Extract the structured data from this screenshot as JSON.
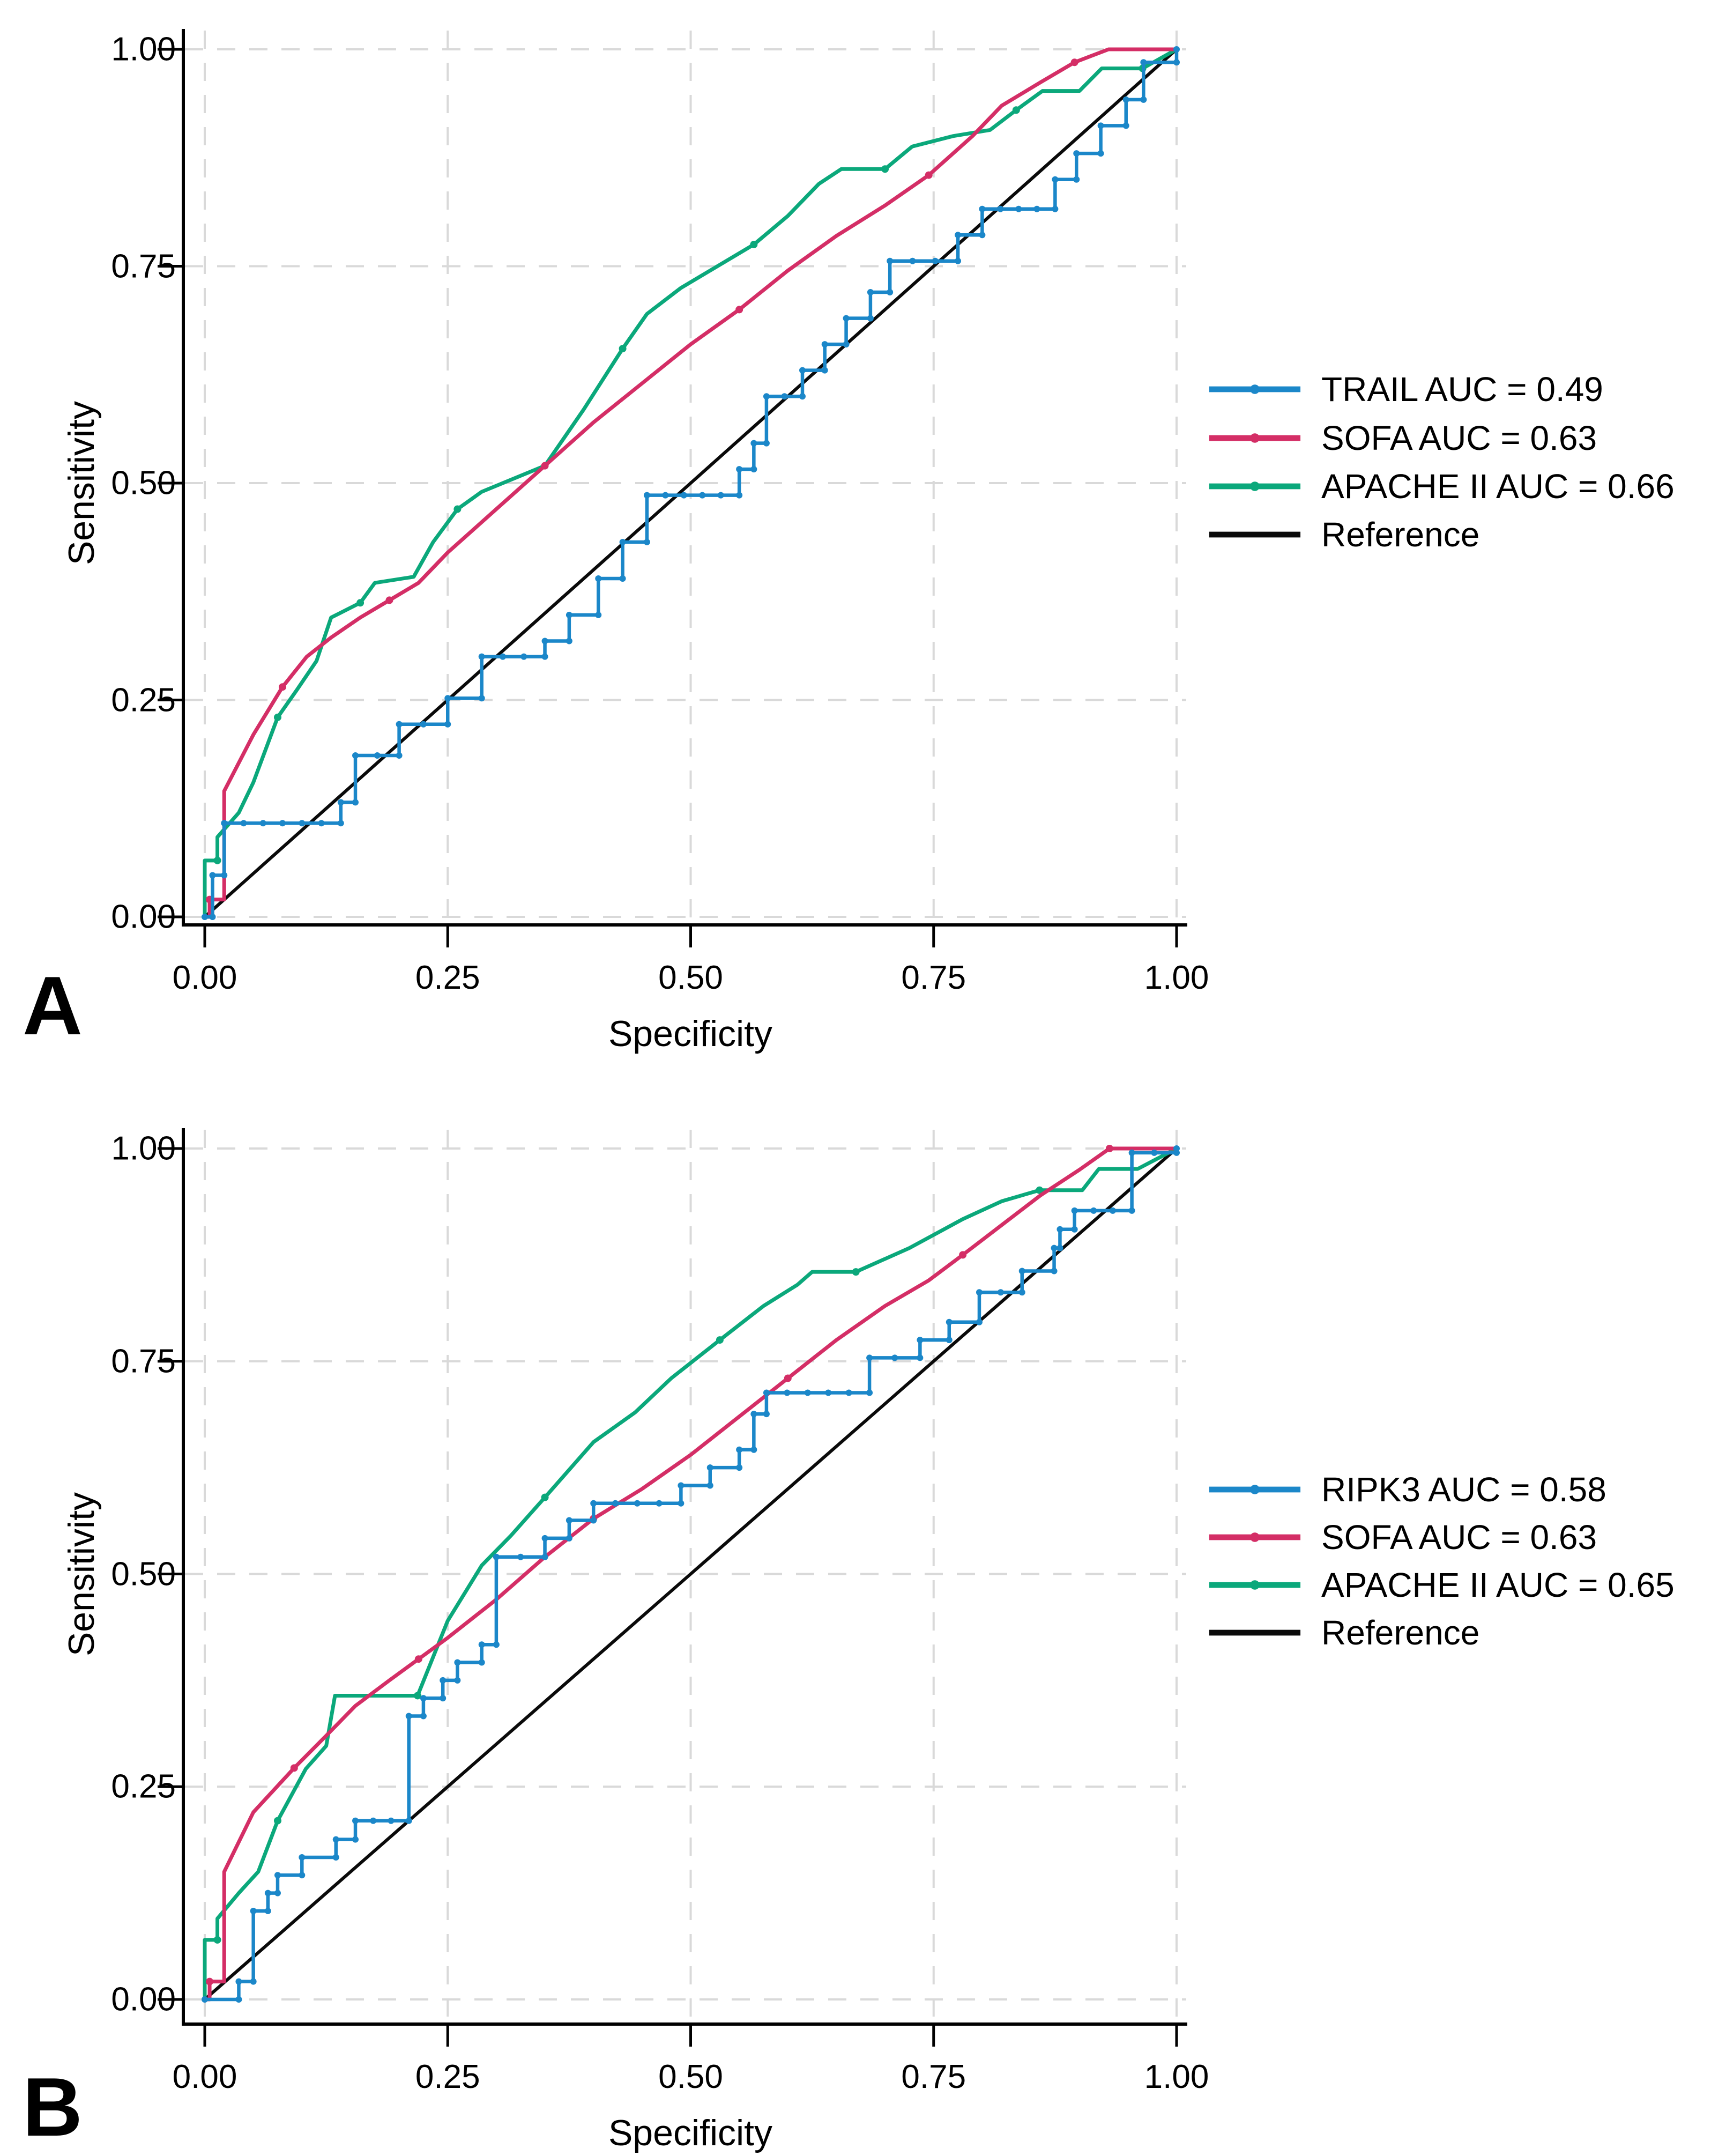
{
  "figure": {
    "background": "#ffffff",
    "grid_color": "#d9d9d9",
    "axis_color": "#000000",
    "panel_letters": [
      "A",
      "B"
    ]
  },
  "chart_data": [
    {
      "type": "line",
      "panel_label": "A",
      "title": "",
      "xlabel": "Specificity",
      "ylabel": "Sensitivity",
      "xlim": [
        0,
        1
      ],
      "ylim": [
        0,
        1
      ],
      "x_tick_labels": [
        "0.00",
        "0.25",
        "0.50",
        "0.75",
        "1.00"
      ],
      "y_tick_labels": [
        "0.00",
        "0.25",
        "0.50",
        "0.75",
        "1.00"
      ],
      "grid": "dashed",
      "legend_position": "right-outside",
      "series": [
        {
          "name": "TRAIL",
          "label": "TRAIL AUC = 0.49",
          "auc": 0.49,
          "color": "#1b87c9",
          "marker": "dense",
          "points": [
            [
              0,
              0
            ],
            [
              0.008,
              0
            ],
            [
              0.008,
              0.048
            ],
            [
              0.02,
              0.048
            ],
            [
              0.02,
              0.108
            ],
            [
              0.14,
              0.108
            ],
            [
              0.14,
              0.132
            ],
            [
              0.155,
              0.132
            ],
            [
              0.155,
              0.186
            ],
            [
              0.2,
              0.186
            ],
            [
              0.2,
              0.222
            ],
            [
              0.25,
              0.222
            ],
            [
              0.25,
              0.252
            ],
            [
              0.285,
              0.252
            ],
            [
              0.285,
              0.3
            ],
            [
              0.35,
              0.3
            ],
            [
              0.35,
              0.318
            ],
            [
              0.375,
              0.318
            ],
            [
              0.375,
              0.348
            ],
            [
              0.405,
              0.348
            ],
            [
              0.405,
              0.39
            ],
            [
              0.43,
              0.39
            ],
            [
              0.43,
              0.432
            ],
            [
              0.455,
              0.432
            ],
            [
              0.455,
              0.486
            ],
            [
              0.55,
              0.486
            ],
            [
              0.55,
              0.516
            ],
            [
              0.565,
              0.516
            ],
            [
              0.565,
              0.546
            ],
            [
              0.578,
              0.546
            ],
            [
              0.578,
              0.6
            ],
            [
              0.615,
              0.6
            ],
            [
              0.615,
              0.63
            ],
            [
              0.638,
              0.63
            ],
            [
              0.638,
              0.66
            ],
            [
              0.66,
              0.66
            ],
            [
              0.66,
              0.69
            ],
            [
              0.685,
              0.69
            ],
            [
              0.685,
              0.72
            ],
            [
              0.705,
              0.72
            ],
            [
              0.705,
              0.756
            ],
            [
              0.775,
              0.756
            ],
            [
              0.775,
              0.786
            ],
            [
              0.8,
              0.786
            ],
            [
              0.8,
              0.816
            ],
            [
              0.875,
              0.816
            ],
            [
              0.875,
              0.85
            ],
            [
              0.897,
              0.85
            ],
            [
              0.897,
              0.88
            ],
            [
              0.922,
              0.88
            ],
            [
              0.922,
              0.912
            ],
            [
              0.948,
              0.912
            ],
            [
              0.948,
              0.942
            ],
            [
              0.966,
              0.942
            ],
            [
              0.966,
              0.985
            ],
            [
              1,
              0.985
            ],
            [
              1,
              1
            ]
          ]
        },
        {
          "name": "SOFA",
          "label": "SOFA AUC = 0.63",
          "auc": 0.63,
          "color": "#d42e66",
          "marker": "sparse",
          "points": [
            [
              0,
              0
            ],
            [
              0.005,
              0
            ],
            [
              0.005,
              0.02
            ],
            [
              0.02,
              0.02
            ],
            [
              0.02,
              0.145
            ],
            [
              0.05,
              0.21
            ],
            [
              0.08,
              0.265
            ],
            [
              0.105,
              0.3
            ],
            [
              0.13,
              0.322
            ],
            [
              0.16,
              0.345
            ],
            [
              0.19,
              0.365
            ],
            [
              0.22,
              0.385
            ],
            [
              0.25,
              0.42
            ],
            [
              0.3,
              0.47
            ],
            [
              0.35,
              0.52
            ],
            [
              0.4,
              0.57
            ],
            [
              0.45,
              0.615
            ],
            [
              0.5,
              0.66
            ],
            [
              0.55,
              0.7
            ],
            [
              0.6,
              0.745
            ],
            [
              0.65,
              0.785
            ],
            [
              0.7,
              0.82
            ],
            [
              0.745,
              0.855
            ],
            [
              0.79,
              0.9
            ],
            [
              0.82,
              0.935
            ],
            [
              0.86,
              0.962
            ],
            [
              0.895,
              0.985
            ],
            [
              0.93,
              1
            ],
            [
              1,
              1
            ]
          ]
        },
        {
          "name": "APACHE II",
          "label": "APACHE II AUC = 0.66",
          "auc": 0.66,
          "color": "#0ba87b",
          "marker": "sparse",
          "points": [
            [
              0,
              0
            ],
            [
              0,
              0.065
            ],
            [
              0.013,
              0.065
            ],
            [
              0.013,
              0.092
            ],
            [
              0.035,
              0.12
            ],
            [
              0.05,
              0.155
            ],
            [
              0.075,
              0.23
            ],
            [
              0.095,
              0.262
            ],
            [
              0.115,
              0.295
            ],
            [
              0.13,
              0.345
            ],
            [
              0.16,
              0.362
            ],
            [
              0.175,
              0.385
            ],
            [
              0.215,
              0.392
            ],
            [
              0.235,
              0.432
            ],
            [
              0.26,
              0.47
            ],
            [
              0.285,
              0.49
            ],
            [
              0.35,
              0.52
            ],
            [
              0.39,
              0.585
            ],
            [
              0.43,
              0.655
            ],
            [
              0.455,
              0.695
            ],
            [
              0.49,
              0.725
            ],
            [
              0.52,
              0.745
            ],
            [
              0.565,
              0.775
            ],
            [
              0.6,
              0.808
            ],
            [
              0.632,
              0.845
            ],
            [
              0.655,
              0.862
            ],
            [
              0.7,
              0.862
            ],
            [
              0.728,
              0.888
            ],
            [
              0.77,
              0.9
            ],
            [
              0.808,
              0.907
            ],
            [
              0.835,
              0.93
            ],
            [
              0.862,
              0.952
            ],
            [
              0.9,
              0.952
            ],
            [
              0.923,
              0.978
            ],
            [
              0.965,
              0.978
            ],
            [
              1,
              1
            ]
          ]
        },
        {
          "name": "Reference",
          "label": "Reference",
          "color": "#0a0a0a",
          "marker": "none",
          "points": [
            [
              0,
              0
            ],
            [
              1,
              1
            ]
          ]
        }
      ]
    },
    {
      "type": "line",
      "panel_label": "B",
      "title": "",
      "xlabel": "Specificity",
      "ylabel": "Sensitivity",
      "xlim": [
        0,
        1
      ],
      "ylim": [
        0,
        1
      ],
      "x_tick_labels": [
        "0.00",
        "0.25",
        "0.50",
        "0.75",
        "1.00"
      ],
      "y_tick_labels": [
        "0.00",
        "0.25",
        "0.50",
        "0.75",
        "1.00"
      ],
      "grid": "dashed",
      "legend_position": "right-outside",
      "series": [
        {
          "name": "RIPK3",
          "label": "RIPK3 AUC = 0.58",
          "auc": 0.58,
          "color": "#1b87c9",
          "marker": "dense",
          "points": [
            [
              0,
              0
            ],
            [
              0.035,
              0
            ],
            [
              0.035,
              0.021
            ],
            [
              0.05,
              0.021
            ],
            [
              0.05,
              0.104
            ],
            [
              0.065,
              0.104
            ],
            [
              0.065,
              0.125
            ],
            [
              0.075,
              0.125
            ],
            [
              0.075,
              0.146
            ],
            [
              0.1,
              0.146
            ],
            [
              0.1,
              0.167
            ],
            [
              0.135,
              0.167
            ],
            [
              0.135,
              0.188
            ],
            [
              0.155,
              0.188
            ],
            [
              0.155,
              0.21
            ],
            [
              0.21,
              0.21
            ],
            [
              0.21,
              0.333
            ],
            [
              0.225,
              0.333
            ],
            [
              0.225,
              0.354
            ],
            [
              0.245,
              0.354
            ],
            [
              0.245,
              0.375
            ],
            [
              0.26,
              0.375
            ],
            [
              0.26,
              0.396
            ],
            [
              0.285,
              0.396
            ],
            [
              0.285,
              0.417
            ],
            [
              0.3,
              0.417
            ],
            [
              0.3,
              0.52
            ],
            [
              0.35,
              0.52
            ],
            [
              0.35,
              0.542
            ],
            [
              0.375,
              0.542
            ],
            [
              0.375,
              0.563
            ],
            [
              0.4,
              0.563
            ],
            [
              0.4,
              0.583
            ],
            [
              0.49,
              0.583
            ],
            [
              0.49,
              0.604
            ],
            [
              0.52,
              0.604
            ],
            [
              0.52,
              0.625
            ],
            [
              0.55,
              0.625
            ],
            [
              0.55,
              0.646
            ],
            [
              0.565,
              0.646
            ],
            [
              0.565,
              0.688
            ],
            [
              0.578,
              0.688
            ],
            [
              0.578,
              0.713
            ],
            [
              0.684,
              0.713
            ],
            [
              0.684,
              0.754
            ],
            [
              0.736,
              0.754
            ],
            [
              0.736,
              0.775
            ],
            [
              0.766,
              0.775
            ],
            [
              0.766,
              0.796
            ],
            [
              0.797,
              0.796
            ],
            [
              0.797,
              0.831
            ],
            [
              0.841,
              0.831
            ],
            [
              0.841,
              0.856
            ],
            [
              0.874,
              0.856
            ],
            [
              0.874,
              0.883
            ],
            [
              0.88,
              0.883
            ],
            [
              0.88,
              0.905
            ],
            [
              0.895,
              0.905
            ],
            [
              0.895,
              0.927
            ],
            [
              0.954,
              0.927
            ],
            [
              0.954,
              0.995
            ],
            [
              1,
              0.995
            ],
            [
              1,
              1
            ]
          ]
        },
        {
          "name": "SOFA",
          "label": "SOFA AUC = 0.63",
          "auc": 0.63,
          "color": "#d42e66",
          "marker": "sparse",
          "points": [
            [
              0,
              0
            ],
            [
              0.005,
              0
            ],
            [
              0.005,
              0.021
            ],
            [
              0.02,
              0.021
            ],
            [
              0.02,
              0.15
            ],
            [
              0.05,
              0.22
            ],
            [
              0.092,
              0.272
            ],
            [
              0.125,
              0.31
            ],
            [
              0.155,
              0.345
            ],
            [
              0.19,
              0.375
            ],
            [
              0.22,
              0.4
            ],
            [
              0.25,
              0.425
            ],
            [
              0.3,
              0.47
            ],
            [
              0.35,
              0.52
            ],
            [
              0.4,
              0.565
            ],
            [
              0.45,
              0.6
            ],
            [
              0.5,
              0.64
            ],
            [
              0.55,
              0.685
            ],
            [
              0.6,
              0.73
            ],
            [
              0.65,
              0.775
            ],
            [
              0.7,
              0.815
            ],
            [
              0.745,
              0.845
            ],
            [
              0.78,
              0.875
            ],
            [
              0.82,
              0.91
            ],
            [
              0.86,
              0.945
            ],
            [
              0.9,
              0.975
            ],
            [
              0.931,
              1
            ],
            [
              1,
              1
            ]
          ]
        },
        {
          "name": "APACHE II",
          "label": "APACHE II AUC = 0.65",
          "auc": 0.65,
          "color": "#0ba87b",
          "marker": "sparse",
          "points": [
            [
              0,
              0
            ],
            [
              0,
              0.07
            ],
            [
              0.013,
              0.07
            ],
            [
              0.013,
              0.095
            ],
            [
              0.035,
              0.125
            ],
            [
              0.055,
              0.15
            ],
            [
              0.075,
              0.21
            ],
            [
              0.104,
              0.271
            ],
            [
              0.125,
              0.298
            ],
            [
              0.134,
              0.357
            ],
            [
              0.219,
              0.357
            ],
            [
              0.25,
              0.445
            ],
            [
              0.285,
              0.51
            ],
            [
              0.315,
              0.545
            ],
            [
              0.35,
              0.59
            ],
            [
              0.4,
              0.655
            ],
            [
              0.443,
              0.69
            ],
            [
              0.48,
              0.73
            ],
            [
              0.53,
              0.775
            ],
            [
              0.575,
              0.815
            ],
            [
              0.61,
              0.84
            ],
            [
              0.625,
              0.855
            ],
            [
              0.67,
              0.855
            ],
            [
              0.725,
              0.883
            ],
            [
              0.78,
              0.917
            ],
            [
              0.82,
              0.938
            ],
            [
              0.859,
              0.951
            ],
            [
              0.903,
              0.951
            ],
            [
              0.92,
              0.976
            ],
            [
              0.96,
              0.976
            ],
            [
              1,
              1
            ]
          ]
        },
        {
          "name": "Reference",
          "label": "Reference",
          "color": "#0a0a0a",
          "marker": "none",
          "points": [
            [
              0,
              0
            ],
            [
              1,
              1
            ]
          ]
        }
      ]
    }
  ]
}
